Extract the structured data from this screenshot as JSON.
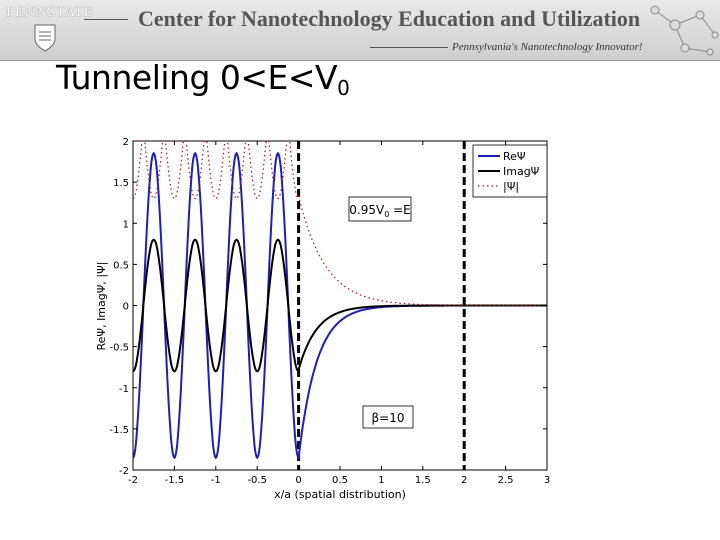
{
  "header": {
    "logo_text": "PENNSTATE",
    "title": "Center for Nanotechnology Education and Utilization",
    "tagline": "Pennsylvania's Nanotechnology Innovator!"
  },
  "slide": {
    "title_main": "Tunneling 0<E<V",
    "title_sub": "0"
  },
  "chart_data": {
    "type": "line",
    "xlabel": "x/a (spatial distribution)",
    "ylabel": "ReΨ, ImagΨ, |Ψ|",
    "xlim": [
      -2,
      3
    ],
    "ylim": [
      -2,
      2
    ],
    "xticks": [
      "-2",
      "-1.5",
      "-1",
      "-0.5",
      "0",
      "0.5",
      "1",
      "1.5",
      "2",
      "2.5",
      "3"
    ],
    "yticks": [
      "2",
      "1.5",
      "1",
      "0.5",
      "0",
      "-0.5",
      "-1",
      "-1.5",
      "-2"
    ],
    "grid": false,
    "legend_position": "top-right",
    "barrier_edges": [
      0,
      2
    ],
    "annotations": {
      "energy_main": "0.95V",
      "energy_sub": "0",
      "energy_tail": " =E",
      "beta": "β=10"
    },
    "series": [
      {
        "name": "ReΨ",
        "color": "#1f1fb4",
        "style": "solid",
        "note_values": {
          "amplitude_left": 1.85,
          "value_at_0": -1.85,
          "decay": 0.22
        }
      },
      {
        "name": "ImagΨ",
        "color": "#000000",
        "style": "solid",
        "note_values": {
          "amplitude_left": 0.8,
          "value_at_0": -0.78,
          "decay": 0.22
        }
      },
      {
        "name": "|Ψ|",
        "color": "#a01818",
        "style": "dotted",
        "note_values": {
          "value_at_0": 1.33,
          "decay": 0.32
        }
      }
    ]
  }
}
